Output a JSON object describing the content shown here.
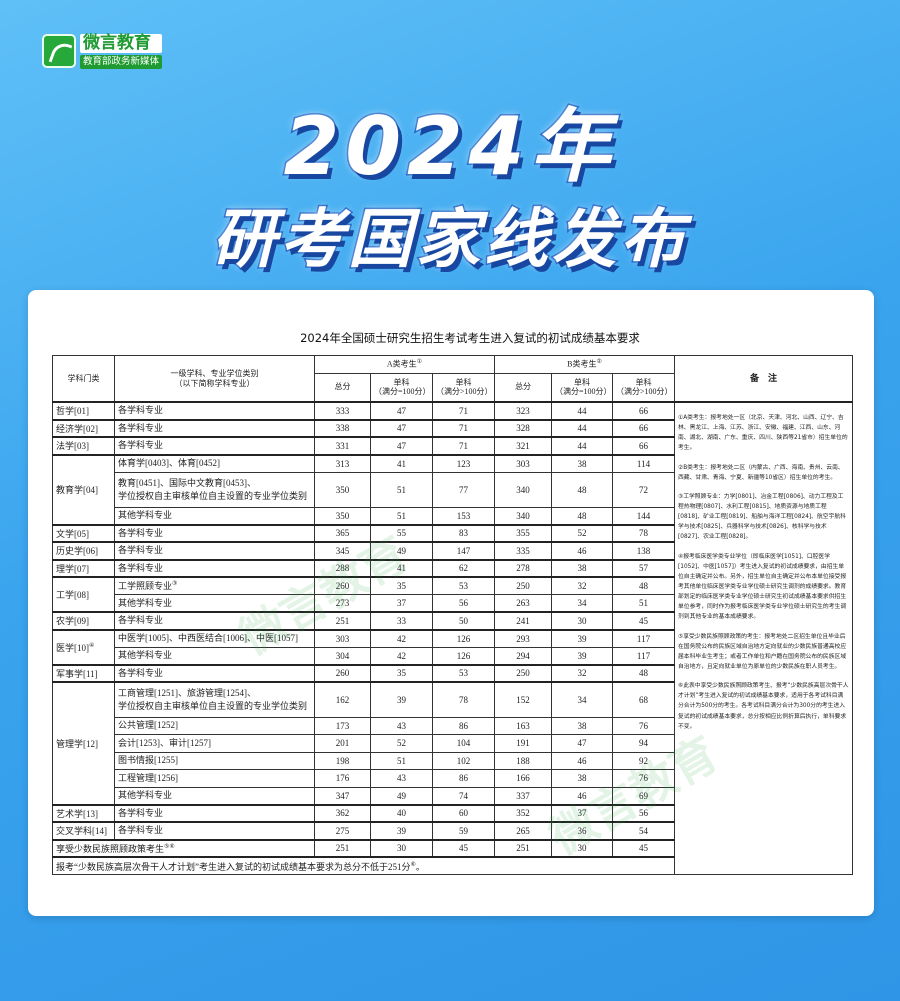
{
  "logo": {
    "name": "微言教育",
    "subtitle": "教育部政务新媒体"
  },
  "headline": {
    "line1": "2024年",
    "line2": "研考国家线发布"
  },
  "table": {
    "title": "2024年全国硕士研究生招生考试考生进入复试的初试成绩基本要求",
    "headers": {
      "category": "学科门类",
      "subject": "一级学科、专业学位类别",
      "subject_note": "（以下简称学科专业）",
      "group_a": "A类考生",
      "group_a_mark": "①",
      "group_b": "B类考生",
      "group_b_mark": "②",
      "total": "总分",
      "single": "单科",
      "single_eq": "（满分=100分）",
      "single_gt": "（满分>100分）",
      "notes": "备　注"
    },
    "rows": [
      {
        "category": "哲学[01]",
        "span": 1,
        "subject": "各学科专业",
        "a": [
          333,
          47,
          71
        ],
        "b": [
          323,
          44,
          66
        ]
      },
      {
        "category": "经济学[02]",
        "span": 1,
        "subject": "各学科专业",
        "a": [
          338,
          47,
          71
        ],
        "b": [
          328,
          44,
          66
        ]
      },
      {
        "category": "法学[03]",
        "span": 1,
        "subject": "各学科专业",
        "a": [
          331,
          47,
          71
        ],
        "b": [
          321,
          44,
          66
        ]
      },
      {
        "category": "教育学[04]",
        "span": 3,
        "subject": "体育学[0403]、体育[0452]",
        "a": [
          313,
          41,
          123
        ],
        "b": [
          303,
          38,
          114
        ]
      },
      {
        "subject": "教育[0451]、国际中文教育[0453]、\n学位授权自主审核单位自主设置的专业学位类别",
        "tall": true,
        "a": [
          350,
          51,
          77
        ],
        "b": [
          340,
          48,
          72
        ]
      },
      {
        "subject": "其他学科专业",
        "a": [
          350,
          51,
          153
        ],
        "b": [
          340,
          48,
          144
        ]
      },
      {
        "category": "文学[05]",
        "span": 1,
        "subject": "各学科专业",
        "a": [
          365,
          55,
          83
        ],
        "b": [
          355,
          52,
          78
        ]
      },
      {
        "category": "历史学[06]",
        "span": 1,
        "subject": "各学科专业",
        "a": [
          345,
          49,
          147
        ],
        "b": [
          335,
          46,
          138
        ]
      },
      {
        "category": "理学[07]",
        "span": 1,
        "subject": "各学科专业",
        "a": [
          288,
          41,
          62
        ],
        "b": [
          278,
          38,
          57
        ]
      },
      {
        "category": "工学[08]",
        "span": 2,
        "subject": "工学照顾专业",
        "mark": "③",
        "a": [
          260,
          35,
          53
        ],
        "b": [
          250,
          32,
          48
        ]
      },
      {
        "subject": "其他学科专业",
        "a": [
          273,
          37,
          56
        ],
        "b": [
          263,
          34,
          51
        ]
      },
      {
        "category": "农学[09]",
        "span": 1,
        "subject": "各学科专业",
        "a": [
          251,
          33,
          50
        ],
        "b": [
          241,
          30,
          45
        ]
      },
      {
        "category": "医学[10]",
        "category_mark": "④",
        "span": 2,
        "subject": "中医学[1005]、中西医结合[1006]、中医[1057]",
        "a": [
          303,
          42,
          126
        ],
        "b": [
          293,
          39,
          117
        ]
      },
      {
        "subject": "其他学科专业",
        "a": [
          304,
          42,
          126
        ],
        "b": [
          294,
          39,
          117
        ]
      },
      {
        "category": "军事学[11]",
        "span": 1,
        "subject": "各学科专业",
        "a": [
          260,
          35,
          53
        ],
        "b": [
          250,
          32,
          48
        ]
      },
      {
        "category": "管理学[12]",
        "span": 6,
        "subject": "工商管理[1251]、旅游管理[1254]、\n学位授权自主审核单位自主设置的专业学位类别",
        "tall": true,
        "a": [
          162,
          39,
          78
        ],
        "b": [
          152,
          34,
          68
        ]
      },
      {
        "subject": "公共管理[1252]",
        "a": [
          173,
          43,
          86
        ],
        "b": [
          163,
          38,
          76
        ]
      },
      {
        "subject": "会计[1253]、审计[1257]",
        "a": [
          201,
          52,
          104
        ],
        "b": [
          191,
          47,
          94
        ]
      },
      {
        "subject": "图书情报[1255]",
        "a": [
          198,
          51,
          102
        ],
        "b": [
          188,
          46,
          92
        ]
      },
      {
        "subject": "工程管理[1256]",
        "a": [
          176,
          43,
          86
        ],
        "b": [
          166,
          38,
          76
        ]
      },
      {
        "subject": "其他学科专业",
        "a": [
          347,
          49,
          74
        ],
        "b": [
          337,
          46,
          69
        ]
      },
      {
        "category": "艺术学[13]",
        "span": 1,
        "subject": "各学科专业",
        "a": [
          362,
          40,
          60
        ],
        "b": [
          352,
          37,
          56
        ]
      },
      {
        "category": "交叉学科[14]",
        "span": 1,
        "subject": "各学科专业",
        "a": [
          275,
          39,
          59
        ],
        "b": [
          265,
          36,
          54
        ]
      },
      {
        "merged": "享受少数民族照顾政策考生",
        "mark": "⑤⑥",
        "a": [
          251,
          30,
          45
        ],
        "b": [
          251,
          30,
          45
        ]
      }
    ],
    "footer": "报考“少数民族高层次骨干人才计划”考生进入复试的初试成绩基本要求为总分不低于251分",
    "footer_mark": "⑥",
    "notes": [
      "①A类考生：报考地处一区（北京、天津、河北、山西、辽宁、吉林、黑龙江、上海、江苏、浙江、安徽、福建、江西、山东、河南、湖北、湖南、广东、重庆、四川、陕西等21省市）招生单位的考生。",
      "②B类考生：报考地处二区（内蒙古、广西、海南、贵州、云南、西藏、甘肃、青海、宁夏、新疆等10省区）招生单位的考生。",
      "③工学照顾专业：力学[0801]、冶金工程[0806]、动力工程及工程热物理[0807]、水利工程[0815]、地质资源与地质工程[0818]、矿业工程[0819]、船舶与海洋工程[0824]、航空宇航科学与技术[0825]、兵器科学与技术[0826]、核科学与技术[0827]、农业工程[0828]。",
      "④报考临床医学类专业学位（即临床医学[1051]、口腔医学[1052]、中医[1057]）考生进入复试的初试成绩要求，由招生单位自主确定并公布。另外，招生单位自主确定并公布本单位接受报考其他单位临床医学类专业学位硕士研究生调剂的成绩要求。教育部划定的临床医学类专业学位硕士研究生初试成绩基本要求供招生单位参考，同时作为报考临床医学类专业学位硕士研究生的考生调剂到其他专业的基本成绩要求。",
      "⑤享受少数民族照顾政策的考生：报考地处二区招生单位且毕业后在国务院公布的民族区域自治地方定向就业的少数民族普通高校应届本科毕业生考生；或者工作单位和户籍在国务院公布的民族区域自治地方，且定向就业单位为原单位的少数民族在职人员考生。",
      "⑥此表中享受少数民族照顾政策考生、报考“少数民族高层次骨干人才计划”考生进入复试的初试成绩基本要求，适用于各考试科目满分合计为500分的考生。各考试科目满分合计为300分的考生进入复试的初试成绩基本要求，总分按相应比例折算后执行，单科要求不变。"
    ]
  }
}
